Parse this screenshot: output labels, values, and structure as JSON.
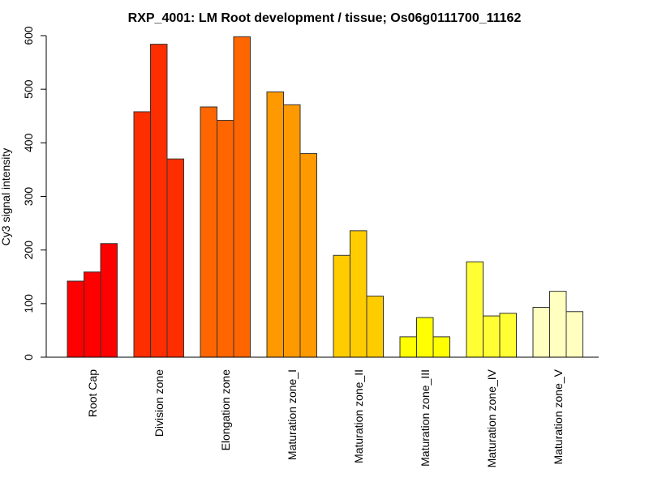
{
  "chart_data": {
    "type": "bar",
    "title": "RXP_4001: LM Root development / tissue; Os06g0111700_11162",
    "xlabel": "",
    "ylabel": "Cy3 signal intensity",
    "ylim": [
      0,
      600
    ],
    "yticks": [
      0,
      100,
      200,
      300,
      400,
      500,
      600
    ],
    "grid": false,
    "legend": "none",
    "categories": [
      "Root Cap",
      "Division zone",
      "Elongation zone",
      "Maturation zone_I",
      "Maturation zone_II",
      "Maturation zone_III",
      "Maturation zone_IV",
      "Maturation zone_V"
    ],
    "colors": [
      "#FF0000",
      "#FF2E00",
      "#FF6600",
      "#FF9900",
      "#FFCC00",
      "#FFFF00",
      "#FFFF33",
      "#FFFFBF"
    ],
    "replicates_per_category": 3,
    "values": [
      [
        142,
        159,
        212
      ],
      [
        458,
        584,
        370
      ],
      [
        467,
        442,
        598
      ],
      [
        495,
        471,
        380
      ],
      [
        190,
        236,
        114
      ],
      [
        38,
        74,
        38
      ],
      [
        178,
        77,
        82
      ],
      [
        93,
        123,
        85
      ]
    ]
  }
}
